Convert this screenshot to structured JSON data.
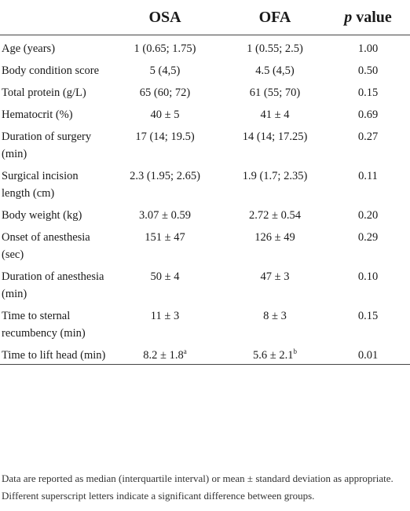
{
  "header": {
    "col_label": "",
    "col_osa": "OSA",
    "col_ofa": "OFA",
    "col_p_italic": "p",
    "col_p_rest": " value"
  },
  "rows": [
    {
      "label": "Age (years)",
      "osa": "1 (0.65; 1.75)",
      "ofa": "1 (0.55; 2.5)",
      "p": "1.00"
    },
    {
      "label": "Body condition score",
      "osa": "5 (4,5)",
      "ofa": "4.5 (4,5)",
      "p": "0.50"
    },
    {
      "label": "Total protein (g/L)",
      "osa": "65 (60; 72)",
      "ofa": "61 (55; 70)",
      "p": "0.15"
    },
    {
      "label": "Hematocrit (%)",
      "osa": "40 ± 5",
      "ofa": "41 ± 4",
      "p": "0.69"
    },
    {
      "label": "Duration of surgery (min)",
      "osa": "17 (14; 19.5)",
      "ofa": "14 (14; 17.25)",
      "p": "0.27"
    },
    {
      "label": "Surgical incision length (cm)",
      "osa": "2.3 (1.95; 2.65)",
      "ofa": "1.9 (1.7; 2.35)",
      "p": "0.11"
    },
    {
      "label": "Body weight (kg)",
      "osa": "3.07 ± 0.59",
      "ofa": "2.72 ± 0.54",
      "p": "0.20"
    },
    {
      "label": "Onset of anesthesia (sec)",
      "osa": "151 ± 47",
      "ofa": "126 ± 49",
      "p": "0.29"
    },
    {
      "label": "Duration of anesthesia (min)",
      "osa": "50 ± 4",
      "ofa": "47 ± 3",
      "p": "0.10"
    },
    {
      "label": "Time to sternal recumbency (min)",
      "osa": "11 ± 3",
      "ofa": "8 ± 3",
      "p": "0.15"
    },
    {
      "label": "Time to lift head (min)",
      "osa": "8.2 ± 1.8",
      "osa_sup": "a",
      "ofa": "5.6 ± 2.1",
      "ofa_sup": "b",
      "p": "0.01"
    }
  ],
  "footnote": "Data are reported as median (interquartile interval) or mean ± standard deviation as appropriate. Different superscript letters indicate a significant difference between groups."
}
